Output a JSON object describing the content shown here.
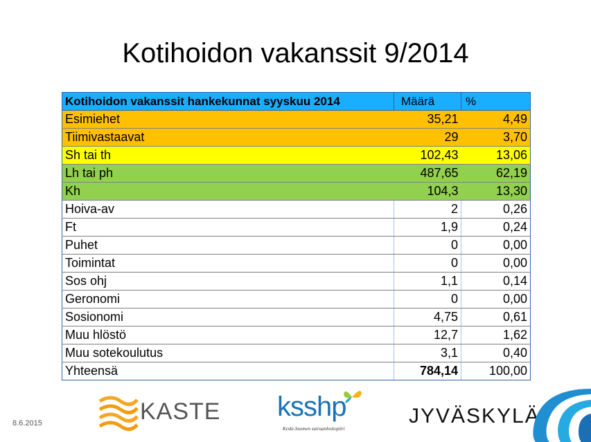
{
  "slide": {
    "title": "Kotihoidon vakanssit 9/2014",
    "date": "8.6.2015"
  },
  "table": {
    "header": {
      "label": "Kotihoidon vakanssit hankekunnat syyskuu 2014",
      "count": "Määrä",
      "percent": "%"
    },
    "rows": [
      {
        "label": "Esimiehet",
        "count": "35,21",
        "percent": "4,49",
        "group": "orange"
      },
      {
        "label": "Tiimivastaavat",
        "count": "29",
        "percent": "3,70",
        "group": "orange"
      },
      {
        "label": "Sh tai th",
        "count": "102,43",
        "percent": "13,06",
        "group": "yellow"
      },
      {
        "label": "Lh tai ph",
        "count": "487,65",
        "percent": "62,19",
        "group": "green"
      },
      {
        "label": "Kh",
        "count": "104,3",
        "percent": "13,30",
        "group": "green"
      },
      {
        "label": "Hoiva-av",
        "count": "2",
        "percent": "0,26",
        "group": "white"
      },
      {
        "label": "Ft",
        "count": "1,9",
        "percent": "0,24",
        "group": "white"
      },
      {
        "label": "Puhet",
        "count": "0",
        "percent": "0,00",
        "group": "white"
      },
      {
        "label": "Toimintat",
        "count": "0",
        "percent": "0,00",
        "group": "white"
      },
      {
        "label": "Sos ohj",
        "count": "1,1",
        "percent": "0,14",
        "group": "white"
      },
      {
        "label": "Geronomi",
        "count": "0",
        "percent": "0,00",
        "group": "white"
      },
      {
        "label": "Sosionomi",
        "count": "4,75",
        "percent": "0,61",
        "group": "white"
      },
      {
        "label": "Muu hlöstö",
        "count": "12,7",
        "percent": "1,62",
        "group": "white"
      },
      {
        "label": "Muu sotekoulutus",
        "count": "3,1",
        "percent": "0,40",
        "group": "white"
      }
    ],
    "total": {
      "label": "Yhteensä",
      "count": "784,14",
      "percent": "100,00"
    }
  },
  "colors": {
    "header": "#19aeff",
    "orange": "#ffc000",
    "yellow": "#ffff00",
    "green": "#92d050",
    "border": "#2f62b0"
  },
  "logos": {
    "kaste": "KASTE",
    "ksshp": "ksshp",
    "ksshp_sub": "Keski-Suomen sairaanhoitopiiri",
    "jyvaskyla": "JYVÄSKYLÄ"
  }
}
